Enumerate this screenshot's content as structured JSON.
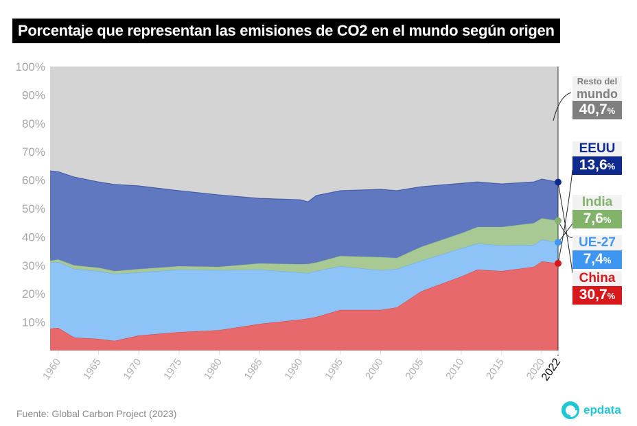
{
  "title": "Porcentaje que representan las emisiones de CO2 en el mundo según origen",
  "source": "Fuente: Global Carbon Project (2023)",
  "logo": "epdata",
  "chart_data": {
    "type": "area",
    "stacked": true,
    "title": "Porcentaje que representan las emisiones de CO2 en el mundo según origen",
    "xlabel": "",
    "ylabel": "",
    "ylim": [
      0,
      100
    ],
    "xlim": [
      1959,
      2022
    ],
    "yticks": [
      "10%",
      "20%",
      "30%",
      "40%",
      "50%",
      "60%",
      "70%",
      "80%",
      "90%",
      "100%"
    ],
    "xticks": [
      "1960",
      "1965",
      "1970",
      "1975",
      "1980",
      "1985",
      "1990",
      "1995",
      "2000",
      "2005",
      "2010",
      "2015",
      "2020",
      "2022"
    ],
    "x": [
      1959,
      1960,
      1962,
      1965,
      1967,
      1970,
      1975,
      1980,
      1985,
      1990,
      1991,
      1992,
      1995,
      2000,
      2002,
      2005,
      2010,
      2012,
      2015,
      2019,
      2020,
      2022
    ],
    "series": [
      {
        "name": "China",
        "color": "#e8696b",
        "accent": "#d7191c",
        "label_value": "30,7",
        "values": [
          7.7,
          8.0,
          4.6,
          4.1,
          3.4,
          5.3,
          6.5,
          7.2,
          9.4,
          10.9,
          11.3,
          11.8,
          14.3,
          14.3,
          15.2,
          20.8,
          26.1,
          28.5,
          28.0,
          29.5,
          31.4,
          30.7
        ]
      },
      {
        "name": "UE-27",
        "color": "#8ec3f7",
        "accent": "#3f96f0",
        "label_value": "7,4",
        "values": [
          23.3,
          23.2,
          24.1,
          23.9,
          23.6,
          22.2,
          22.0,
          21.1,
          19.1,
          16.6,
          16.0,
          16.2,
          15.4,
          14.0,
          13.5,
          10.8,
          9.9,
          9.2,
          9.0,
          7.7,
          7.7,
          7.4
        ]
      },
      {
        "name": "India",
        "color": "#a9c994",
        "accent": "#82b36b",
        "label_value": "7,6",
        "values": [
          0.6,
          0.9,
          1.3,
          1.2,
          1.0,
          1.2,
          1.2,
          1.2,
          2.2,
          2.9,
          3.2,
          3.0,
          3.6,
          4.6,
          3.9,
          4.9,
          5.3,
          5.8,
          6.5,
          7.7,
          7.5,
          7.6
        ]
      },
      {
        "name": "EEUU",
        "color": "#5f78c0",
        "accent": "#0f2a8e",
        "label_value": "13,6",
        "values": [
          31.7,
          30.9,
          31.1,
          30.2,
          30.5,
          29.3,
          26.6,
          25.3,
          22.9,
          22.7,
          21.9,
          23.6,
          23.0,
          23.9,
          23.7,
          21.2,
          17.6,
          15.9,
          15.2,
          14.5,
          13.8,
          13.6
        ]
      },
      {
        "name": "Resto del mundo",
        "name_line1": "Resto del",
        "name_line2": "mundo",
        "color": "#d4d4d4",
        "accent": "#7f7f7f",
        "label_value": "40,7"
      }
    ],
    "percent_sign": "%"
  }
}
